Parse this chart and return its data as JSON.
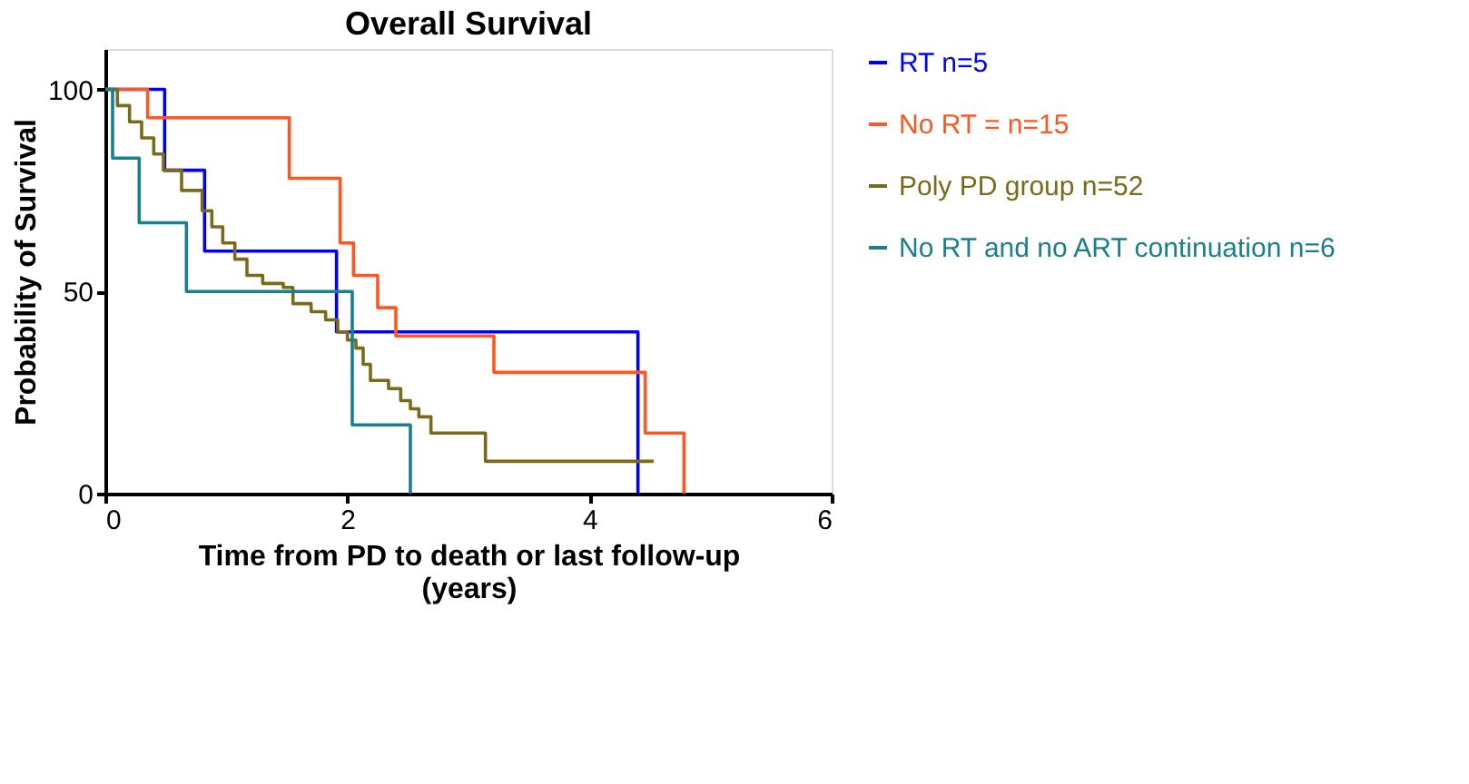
{
  "chart_data": {
    "type": "step",
    "title": "Overall  Survival",
    "xlabel": "Time from PD to death or last follow-up\n(years)",
    "ylabel": "Probability of Survival",
    "xlim": [
      0,
      6
    ],
    "xticks": [
      0,
      2,
      4,
      6
    ],
    "ylim": [
      0,
      110
    ],
    "yticks": [
      0,
      50,
      100
    ],
    "grid": false,
    "legend": "right",
    "series": [
      {
        "name": "RT n=5",
        "color": "#0000ff",
        "x": [
          0,
          0.49,
          0.82,
          1.91,
          4.4
        ],
        "values": [
          100,
          80,
          60,
          40,
          0
        ]
      },
      {
        "name": "No RT = n=15",
        "color": "#ff5722",
        "x": [
          0,
          0.35,
          1.52,
          1.94,
          2.05,
          2.25,
          2.4,
          3.21,
          4.46,
          4.78
        ],
        "values": [
          100,
          93,
          78,
          62,
          54,
          46,
          39,
          30,
          15,
          0
        ]
      },
      {
        "name": "Poly PD group n=52",
        "color": "#7a6a1a",
        "x": [
          0,
          0.1,
          0.2,
          0.3,
          0.4,
          0.48,
          0.63,
          0.8,
          0.88,
          0.97,
          1.07,
          1.17,
          1.3,
          1.47,
          1.55,
          1.7,
          1.82,
          1.92,
          2.0,
          2.07,
          2.13,
          2.19,
          2.34,
          2.44,
          2.52,
          2.59,
          2.69,
          3.14,
          4.53
        ],
        "values": [
          100,
          96,
          92,
          88,
          84,
          80,
          75,
          70,
          66,
          62,
          58,
          54,
          52,
          51,
          47,
          45,
          43,
          40,
          38,
          36,
          32,
          28,
          26,
          23,
          21,
          19,
          15,
          8,
          8
        ]
      },
      {
        "name": "No RT and no ART continuation n=6",
        "color": "#1a7f8f",
        "x": [
          0,
          0.06,
          0.28,
          0.67,
          2.04,
          2.52
        ],
        "values": [
          100,
          83,
          67,
          50,
          17,
          0
        ]
      }
    ]
  }
}
